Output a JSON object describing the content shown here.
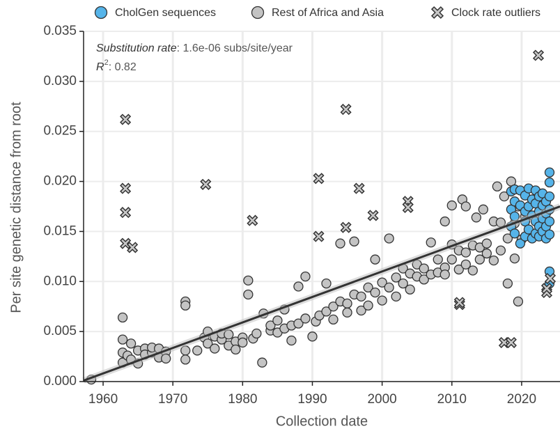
{
  "chart_data": {
    "type": "scatter",
    "annotation": {
      "rate_label": "Substitution rate",
      "rate_value": ": 1.6e-06 subs/site/year",
      "r2_label": "R",
      "r2_sup": "2",
      "r2_value": ": 0.82"
    },
    "x_label": "Collection date",
    "y_label": "Per site genetic distance from root",
    "xlim": [
      1957.2,
      2025.5
    ],
    "xticks": [
      1960,
      1970,
      1980,
      1990,
      2000,
      2010,
      2020
    ],
    "ylim": [
      0,
      0.035
    ],
    "yticks": [
      {
        "value": 0,
        "label": "0.000"
      },
      {
        "value": 0.005,
        "label": "0.005"
      },
      {
        "value": 0.01,
        "label": "0.010"
      },
      {
        "value": 0.015,
        "label": "0.015"
      },
      {
        "value": 0.02,
        "label": "0.020"
      },
      {
        "value": 0.025,
        "label": "0.025"
      },
      {
        "value": 0.03,
        "label": "0.030"
      },
      {
        "value": 0.035,
        "label": "0.035"
      }
    ],
    "grid": true,
    "trend": {
      "color": "#333333",
      "x": [
        1957.2,
        2025.5
      ],
      "y": [
        0.0001,
        0.0175
      ]
    },
    "series": [
      {
        "name": "Rest of Africa and Asia",
        "color": "#c4c4c4",
        "marker": "circle",
        "x": [
          1958.3,
          1962.8,
          1962.8,
          1962.8,
          1962.8,
          1963.5,
          1964,
          1964,
          1965,
          1965,
          1966,
          1966,
          1967,
          1967,
          1968,
          1968,
          1969,
          1969,
          1971.8,
          1971.8,
          1971.8,
          1971.8,
          1973.5,
          1974.5,
          1975,
          1975,
          1976,
          1976,
          1977,
          1977,
          1978,
          1978,
          1979,
          1979,
          1980,
          1980,
          1980.8,
          1980.8,
          1981.5,
          1982,
          1982.8,
          1983,
          1984,
          1984,
          1985,
          1985,
          1986,
          1986,
          1987,
          1987,
          1988,
          1988,
          1989,
          1989,
          1990,
          1990.5,
          1991,
          1992,
          1992,
          1993,
          1993,
          1994,
          1994,
          1995,
          1995,
          1996,
          1996,
          1997,
          1997,
          1998,
          1998,
          1999,
          1999,
          2000,
          2000,
          2001,
          2001,
          2002,
          2002,
          2003,
          2003,
          2004,
          2004,
          2005,
          2005,
          2006,
          2006,
          2007,
          2007,
          2008,
          2008,
          2009,
          2009,
          2010,
          2010,
          2011,
          2011,
          2012,
          2012,
          2013,
          2013,
          2014,
          2014,
          2015,
          2015,
          2016,
          2016,
          2017,
          2017,
          2018,
          2018,
          2019,
          2019,
          2019.5,
          2020,
          2013.5,
          2014.5,
          2011.5,
          2012,
          2016.5,
          2017.5,
          2018.5,
          2019.5,
          2010,
          2009,
          2020.5
        ],
        "values": [
          0.0002,
          0.0064,
          0.0042,
          0.0029,
          0.0019,
          0.0026,
          0.0038,
          0.0022,
          0.0031,
          0.0018,
          0.0033,
          0.0027,
          0.0029,
          0.0034,
          0.0024,
          0.0033,
          0.003,
          0.0023,
          0.008,
          0.0076,
          0.0031,
          0.0022,
          0.0031,
          0.0044,
          0.005,
          0.0038,
          0.0033,
          0.0045,
          0.0042,
          0.0048,
          0.0036,
          0.0047,
          0.004,
          0.0032,
          0.0044,
          0.0039,
          0.0101,
          0.0087,
          0.0043,
          0.0048,
          0.0019,
          0.0068,
          0.0051,
          0.0056,
          0.0049,
          0.0061,
          0.0053,
          0.0072,
          0.0056,
          0.0041,
          0.0095,
          0.0058,
          0.0105,
          0.0063,
          0.0045,
          0.006,
          0.0066,
          0.007,
          0.0098,
          0.0075,
          0.0062,
          0.008,
          0.0138,
          0.0078,
          0.0069,
          0.0087,
          0.014,
          0.0085,
          0.0071,
          0.0094,
          0.0076,
          0.0089,
          0.0122,
          0.0099,
          0.0081,
          0.0143,
          0.0094,
          0.0104,
          0.0085,
          0.0098,
          0.0113,
          0.0108,
          0.0092,
          0.0105,
          0.0117,
          0.0113,
          0.0102,
          0.0107,
          0.0139,
          0.0109,
          0.0122,
          0.0114,
          0.0107,
          0.0137,
          0.0122,
          0.0131,
          0.0112,
          0.0117,
          0.0129,
          0.0136,
          0.0111,
          0.0134,
          0.0122,
          0.0138,
          0.0128,
          0.016,
          0.0121,
          0.0159,
          0.0131,
          0.0143,
          0.0098,
          0.0158,
          0.0123,
          0.008,
          0.0142,
          0.0164,
          0.0172,
          0.0182,
          0.0175,
          0.0195,
          0.0185,
          0.02,
          0.0175,
          0.0176,
          0.016,
          0.0165
        ]
      },
      {
        "name": "CholGen sequences",
        "color": "#56b4e9",
        "marker": "circle",
        "x": [
          2018.5,
          2018.5,
          2018.5,
          2019,
          2019,
          2019,
          2019,
          2019.8,
          2019.8,
          2019.8,
          2020.5,
          2020.5,
          2020.5,
          2020.5,
          2021,
          2021,
          2021,
          2021.5,
          2021.5,
          2021.5,
          2022,
          2022,
          2022,
          2022,
          2022.5,
          2022.5,
          2022.5,
          2022.5,
          2023,
          2023,
          2023,
          2023,
          2023.5,
          2023.5,
          2023.5,
          2023.5,
          2024,
          2024,
          2024,
          2024,
          2024,
          2024,
          2024,
          2024
        ],
        "values": [
          0.019,
          0.0172,
          0.0155,
          0.0192,
          0.018,
          0.0165,
          0.0148,
          0.0138,
          0.0176,
          0.0191,
          0.0186,
          0.017,
          0.016,
          0.0145,
          0.0193,
          0.0175,
          0.0152,
          0.0182,
          0.0166,
          0.0143,
          0.0191,
          0.0178,
          0.016,
          0.0148,
          0.0185,
          0.017,
          0.0155,
          0.0145,
          0.0188,
          0.0176,
          0.0163,
          0.015,
          0.018,
          0.0168,
          0.0155,
          0.0143,
          0.0209,
          0.0199,
          0.0185,
          0.0172,
          0.016,
          0.0147,
          0.011,
          0.0098
        ]
      },
      {
        "name": "Clock rate outliers",
        "color": "#c8c8c8",
        "marker": "x",
        "x": [
          1963.2,
          1963.2,
          1963.2,
          1963.2,
          1964.2,
          1974.7,
          1981.4,
          1990.9,
          1990.9,
          1994.8,
          1994.8,
          1996.7,
          1998.7,
          2003.7,
          2003.7,
          2011.1,
          2011.1,
          2017.5,
          2018.5,
          2022.4,
          2023.6,
          2023.6,
          2024.1
        ],
        "values": [
          0.0262,
          0.0193,
          0.0169,
          0.0138,
          0.0134,
          0.0197,
          0.0161,
          0.0203,
          0.0145,
          0.0272,
          0.0154,
          0.0193,
          0.0166,
          0.018,
          0.0174,
          0.0077,
          0.0079,
          0.0039,
          0.0039,
          0.0326,
          0.0089,
          0.0093,
          0.0103
        ]
      }
    ],
    "legend_order": [
      1,
      0,
      2
    ]
  }
}
